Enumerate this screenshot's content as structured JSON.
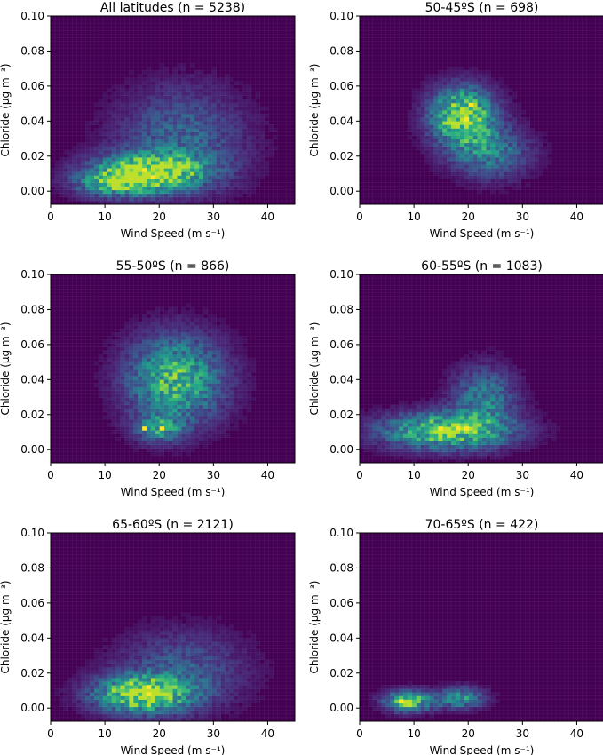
{
  "chart_data": [
    {
      "type": "heatmap",
      "title": "All latitudes (n = 5238)",
      "xlabel": "Wind Speed (m s⁻¹)",
      "ylabel": "Chloride (μg m⁻³)",
      "xlim": [
        0,
        45
      ],
      "ylim": [
        -0.0075,
        0.1
      ],
      "xticks": [
        "0",
        "10",
        "20",
        "30",
        "40"
      ],
      "yticks": [
        "0.00",
        "0.02",
        "0.04",
        "0.06",
        "0.08",
        "0.10"
      ],
      "colormap": "viridis",
      "density_cores": [
        {
          "x": 18,
          "y": 0.011,
          "sx": 7,
          "sy": 0.007,
          "w": 1.0
        },
        {
          "x": 12,
          "y": 0.004,
          "sx": 5,
          "sy": 0.005,
          "w": 0.5
        },
        {
          "x": 24,
          "y": 0.03,
          "sx": 8,
          "sy": 0.02,
          "w": 0.35
        }
      ],
      "peak_bins": [
        {
          "x": 17.6,
          "y": 0.0113
        },
        {
          "x": 18.6,
          "y": 0.0072
        }
      ]
    },
    {
      "type": "heatmap",
      "title": "50-45ºS (n = 698)",
      "xlabel": "Wind Speed (m s⁻¹)",
      "ylabel": "Chloride (μg m⁻³)",
      "xlim": [
        0,
        45
      ],
      "ylim": [
        -0.0075,
        0.1
      ],
      "xticks": [
        "0",
        "10",
        "20",
        "30",
        "40"
      ],
      "yticks": [
        "0.00",
        "0.02",
        "0.04",
        "0.06",
        "0.08",
        "0.10"
      ],
      "colormap": "viridis",
      "density_cores": [
        {
          "x": 19,
          "y": 0.043,
          "sx": 4,
          "sy": 0.011,
          "w": 1.0
        },
        {
          "x": 24,
          "y": 0.022,
          "sx": 5,
          "sy": 0.01,
          "w": 0.45
        }
      ],
      "peak_bins": [
        {
          "x": 20.4,
          "y": 0.0503
        },
        {
          "x": 19.6,
          "y": 0.0407
        }
      ]
    },
    {
      "type": "heatmap",
      "title": "55-50ºS (n = 866)",
      "xlabel": "Wind Speed (m s⁻¹)",
      "ylabel": "Chloride (μg m⁻³)",
      "xlim": [
        0,
        45
      ],
      "ylim": [
        -0.0075,
        0.1
      ],
      "xticks": [
        "0",
        "10",
        "20",
        "30",
        "40"
      ],
      "yticks": [
        "0.00",
        "0.02",
        "0.04",
        "0.06",
        "0.08",
        "0.10"
      ],
      "colormap": "viridis",
      "density_cores": [
        {
          "x": 23,
          "y": 0.04,
          "sx": 6,
          "sy": 0.017,
          "w": 0.75
        },
        {
          "x": 20,
          "y": 0.012,
          "sx": 3,
          "sy": 0.005,
          "w": 0.5
        }
      ],
      "peak_bins": [
        {
          "x": 17.6,
          "y": 0.0113
        },
        {
          "x": 20.4,
          "y": 0.0113
        }
      ]
    },
    {
      "type": "heatmap",
      "title": "60-55ºS (n = 1083)",
      "xlabel": "Wind Speed (m s⁻¹)",
      "ylabel": "Chloride (μg m⁻³)",
      "xlim": [
        0,
        45
      ],
      "ylim": [
        -0.0075,
        0.1
      ],
      "xticks": [
        "0",
        "10",
        "20",
        "30",
        "40"
      ],
      "yticks": [
        "0.00",
        "0.02",
        "0.04",
        "0.06",
        "0.08",
        "0.10"
      ],
      "colormap": "viridis",
      "density_cores": [
        {
          "x": 16,
          "y": 0.011,
          "sx": 8,
          "sy": 0.007,
          "w": 0.9
        },
        {
          "x": 23,
          "y": 0.03,
          "sx": 4,
          "sy": 0.012,
          "w": 0.45
        }
      ],
      "peak_bins": [
        {
          "x": 15.2,
          "y": 0.0113
        },
        {
          "x": 18.0,
          "y": 0.0113
        },
        {
          "x": 19.6,
          "y": 0.0113
        }
      ]
    },
    {
      "type": "heatmap",
      "title": "65-60ºS (n = 2121)",
      "xlabel": "Wind Speed (m s⁻¹)",
      "ylabel": "Chloride (μg m⁻³)",
      "xlim": [
        0,
        45
      ],
      "ylim": [
        -0.0075,
        0.1
      ],
      "xticks": [
        "0",
        "10",
        "20",
        "30",
        "40"
      ],
      "yticks": [
        "0.00",
        "0.02",
        "0.04",
        "0.06",
        "0.08",
        "0.10"
      ],
      "colormap": "viridis",
      "density_cores": [
        {
          "x": 17,
          "y": 0.008,
          "sx": 6,
          "sy": 0.007,
          "w": 1.0
        },
        {
          "x": 24,
          "y": 0.022,
          "sx": 8,
          "sy": 0.015,
          "w": 0.3
        }
      ],
      "peak_bins": [
        {
          "x": 18.0,
          "y": 0.0113
        },
        {
          "x": 18.0,
          "y": 0.0072
        }
      ]
    },
    {
      "type": "heatmap",
      "title": "70-65ºS (n = 422)",
      "xlabel": "Wind Speed (m s⁻¹)",
      "ylabel": "Chloride (μg m⁻³)",
      "xlim": [
        0,
        45
      ],
      "ylim": [
        -0.0075,
        0.1
      ],
      "xticks": [
        "0",
        "10",
        "20",
        "30",
        "40"
      ],
      "yticks": [
        "0.00",
        "0.02",
        "0.04",
        "0.06",
        "0.08",
        "0.10"
      ],
      "colormap": "viridis",
      "density_cores": [
        {
          "x": 9,
          "y": 0.004,
          "sx": 3,
          "sy": 0.004,
          "w": 0.85
        },
        {
          "x": 18.5,
          "y": 0.006,
          "sx": 3,
          "sy": 0.004,
          "w": 0.6
        }
      ],
      "peak_bins": [
        {
          "x": 8.0,
          "y": 0.0031
        }
      ]
    }
  ],
  "colors": {
    "viridis": [
      "#440154",
      "#482878",
      "#3e4989",
      "#31688e",
      "#26828e",
      "#1f9e89",
      "#35b779",
      "#6ece58",
      "#b5de2b",
      "#fde725"
    ]
  }
}
